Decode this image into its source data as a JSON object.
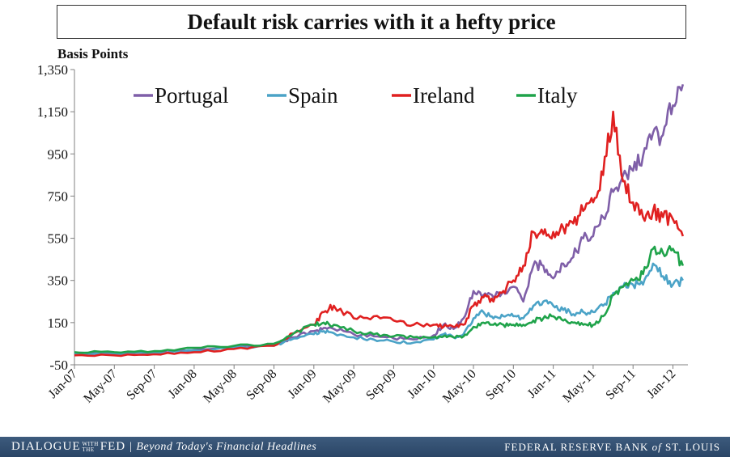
{
  "chart_data": {
    "type": "line",
    "title": "Default risk carries with it a hefty price",
    "ylabel": "Basis Points",
    "ylim": [
      -50,
      1350
    ],
    "yticks": [
      "-50",
      "150",
      "350",
      "550",
      "750",
      "950",
      "1,150",
      "1,350"
    ],
    "xticks": [
      "Jan-07",
      "May-07",
      "Sep-07",
      "Jan-08",
      "May-08",
      "Sep-08",
      "Jan-09",
      "May-09",
      "Sep-09",
      "Jan-10",
      "May-10",
      "Sep-10",
      "Jan-11",
      "May-11",
      "Sep-11",
      "Jan-12"
    ],
    "legend_position": "top",
    "series": [
      {
        "name": "Portugal",
        "color": "#7f5fa8",
        "points": [
          [
            "2007-01",
            5
          ],
          [
            "2007-05",
            5
          ],
          [
            "2007-09",
            10
          ],
          [
            "2008-01",
            20
          ],
          [
            "2008-05",
            35
          ],
          [
            "2008-09",
            45
          ],
          [
            "2008-11",
            80
          ],
          [
            "2009-01",
            110
          ],
          [
            "2009-02",
            125
          ],
          [
            "2009-03",
            120
          ],
          [
            "2009-05",
            95
          ],
          [
            "2009-07",
            85
          ],
          [
            "2009-09",
            75
          ],
          [
            "2009-11",
            70
          ],
          [
            "2010-01",
            90
          ],
          [
            "2010-02",
            140
          ],
          [
            "2010-03",
            120
          ],
          [
            "2010-04",
            170
          ],
          [
            "2010-05",
            300
          ],
          [
            "2010-06",
            280
          ],
          [
            "2010-07",
            270
          ],
          [
            "2010-08",
            300
          ],
          [
            "2010-09",
            320
          ],
          [
            "2010-10",
            250
          ],
          [
            "2010-11",
            420
          ],
          [
            "2010-12",
            420
          ],
          [
            "2011-01",
            360
          ],
          [
            "2011-02",
            430
          ],
          [
            "2011-03",
            460
          ],
          [
            "2011-04",
            550
          ],
          [
            "2011-05",
            560
          ],
          [
            "2011-06",
            650
          ],
          [
            "2011-07",
            770
          ],
          [
            "2011-08",
            850
          ],
          [
            "2011-09",
            870
          ],
          [
            "2011-10",
            940
          ],
          [
            "2011-11",
            1050
          ],
          [
            "2011-12",
            1040
          ],
          [
            "2012-01",
            1180
          ],
          [
            "2012-02",
            1280
          ]
        ]
      },
      {
        "name": "Spain",
        "color": "#4ba3c7",
        "points": [
          [
            "2007-01",
            2
          ],
          [
            "2007-05",
            2
          ],
          [
            "2007-09",
            8
          ],
          [
            "2008-01",
            18
          ],
          [
            "2008-05",
            30
          ],
          [
            "2008-09",
            40
          ],
          [
            "2008-11",
            75
          ],
          [
            "2009-01",
            95
          ],
          [
            "2009-02",
            110
          ],
          [
            "2009-03",
            100
          ],
          [
            "2009-05",
            80
          ],
          [
            "2009-07",
            70
          ],
          [
            "2009-09",
            60
          ],
          [
            "2009-11",
            55
          ],
          [
            "2010-01",
            70
          ],
          [
            "2010-02",
            95
          ],
          [
            "2010-03",
            80
          ],
          [
            "2010-04",
            95
          ],
          [
            "2010-05",
            170
          ],
          [
            "2010-06",
            200
          ],
          [
            "2010-07",
            170
          ],
          [
            "2010-08",
            180
          ],
          [
            "2010-09",
            180
          ],
          [
            "2010-10",
            170
          ],
          [
            "2010-11",
            230
          ],
          [
            "2010-12",
            250
          ],
          [
            "2011-01",
            230
          ],
          [
            "2011-02",
            210
          ],
          [
            "2011-03",
            190
          ],
          [
            "2011-04",
            200
          ],
          [
            "2011-05",
            200
          ],
          [
            "2011-06",
            230
          ],
          [
            "2011-07",
            290
          ],
          [
            "2011-08",
            320
          ],
          [
            "2011-09",
            330
          ],
          [
            "2011-10",
            330
          ],
          [
            "2011-11",
            430
          ],
          [
            "2011-12",
            370
          ],
          [
            "2012-01",
            330
          ],
          [
            "2012-02",
            350
          ]
        ]
      },
      {
        "name": "Ireland",
        "color": "#e02020",
        "points": [
          [
            "2007-01",
            -5
          ],
          [
            "2007-05",
            -5
          ],
          [
            "2007-09",
            0
          ],
          [
            "2008-01",
            10
          ],
          [
            "2008-05",
            25
          ],
          [
            "2008-09",
            40
          ],
          [
            "2008-11",
            100
          ],
          [
            "2009-01",
            140
          ],
          [
            "2009-02",
            200
          ],
          [
            "2009-03",
            230
          ],
          [
            "2009-05",
            170
          ],
          [
            "2009-07",
            180
          ],
          [
            "2009-09",
            160
          ],
          [
            "2009-11",
            140
          ],
          [
            "2010-01",
            140
          ],
          [
            "2010-02",
            130
          ],
          [
            "2010-03",
            130
          ],
          [
            "2010-04",
            140
          ],
          [
            "2010-05",
            230
          ],
          [
            "2010-06",
            270
          ],
          [
            "2010-07",
            250
          ],
          [
            "2010-08",
            300
          ],
          [
            "2010-09",
            350
          ],
          [
            "2010-10",
            420
          ],
          [
            "2010-11",
            580
          ],
          [
            "2010-12",
            570
          ],
          [
            "2011-01",
            580
          ],
          [
            "2011-02",
            600
          ],
          [
            "2011-03",
            620
          ],
          [
            "2011-04",
            680
          ],
          [
            "2011-05",
            720
          ],
          [
            "2011-06",
            850
          ],
          [
            "2011-07",
            1150
          ],
          [
            "2011-08",
            820
          ],
          [
            "2011-09",
            720
          ],
          [
            "2011-10",
            650
          ],
          [
            "2011-11",
            680
          ],
          [
            "2011-12",
            650
          ],
          [
            "2012-01",
            640
          ],
          [
            "2012-02",
            560
          ]
        ]
      },
      {
        "name": "Italy",
        "color": "#1fa34a",
        "points": [
          [
            "2007-01",
            10
          ],
          [
            "2007-05",
            10
          ],
          [
            "2007-09",
            15
          ],
          [
            "2008-01",
            30
          ],
          [
            "2008-05",
            40
          ],
          [
            "2008-09",
            50
          ],
          [
            "2008-11",
            100
          ],
          [
            "2009-01",
            140
          ],
          [
            "2009-02",
            150
          ],
          [
            "2009-03",
            140
          ],
          [
            "2009-05",
            110
          ],
          [
            "2009-07",
            95
          ],
          [
            "2009-09",
            85
          ],
          [
            "2009-11",
            80
          ],
          [
            "2010-01",
            80
          ],
          [
            "2010-02",
            85
          ],
          [
            "2010-03",
            80
          ],
          [
            "2010-04",
            85
          ],
          [
            "2010-05",
            130
          ],
          [
            "2010-06",
            150
          ],
          [
            "2010-07",
            140
          ],
          [
            "2010-08",
            140
          ],
          [
            "2010-09",
            140
          ],
          [
            "2010-10",
            140
          ],
          [
            "2010-11",
            160
          ],
          [
            "2010-12",
            170
          ],
          [
            "2011-01",
            180
          ],
          [
            "2011-02",
            160
          ],
          [
            "2011-03",
            150
          ],
          [
            "2011-04",
            140
          ],
          [
            "2011-05",
            140
          ],
          [
            "2011-06",
            180
          ],
          [
            "2011-07",
            280
          ],
          [
            "2011-08",
            320
          ],
          [
            "2011-09",
            350
          ],
          [
            "2011-10",
            380
          ],
          [
            "2011-11",
            500
          ],
          [
            "2011-12",
            480
          ],
          [
            "2012-01",
            500
          ],
          [
            "2012-02",
            420
          ]
        ]
      }
    ]
  },
  "footer": {
    "brand": "DIALOGUE",
    "brand_with": "WITH",
    "brand_the": "THE",
    "brand_fed": "FED",
    "separator": "|",
    "tagline": "Beyond Today's Financial Headlines",
    "bank_prefix": "FEDERAL RESERVE BANK",
    "bank_of": "of",
    "bank_suffix": "ST. LOUIS"
  },
  "colors": {
    "footer_background": "#2f4c6e",
    "axis": "#808080"
  }
}
